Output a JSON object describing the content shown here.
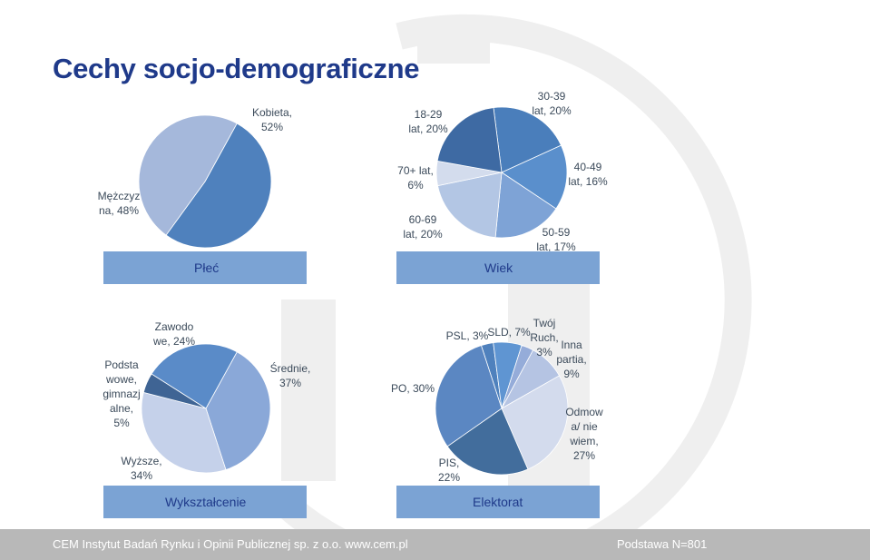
{
  "title": "Cechy socjo-demograficzne",
  "footer": {
    "left": "CEM Instytut Badań Rynku i Opinii Publicznej sp. z o.o. www.cem.pl",
    "right": "Podstawa N=801"
  },
  "chart_data": [
    {
      "type": "pie",
      "caption": "Płeć",
      "slices": [
        {
          "label": [
            "Kobieta,",
            "52%"
          ],
          "value": 52,
          "color": "#4f81bd"
        },
        {
          "label": [
            "Mężczyz",
            "na, 48%"
          ],
          "value": 48,
          "color": "#a5b8db"
        }
      ]
    },
    {
      "type": "pie",
      "caption": "Wiek",
      "slices": [
        {
          "label": [
            "30-39",
            "lat, 20%"
          ],
          "value": 20,
          "color": "#4a7ebb"
        },
        {
          "label": [
            "40-49",
            "lat, 16%"
          ],
          "value": 16,
          "color": "#5a8fcc"
        },
        {
          "label": [
            "50-59",
            "lat, 17%"
          ],
          "value": 17,
          "color": "#7ea3d6"
        },
        {
          "label": [
            "60-69",
            "lat, 20%"
          ],
          "value": 20,
          "color": "#b3c6e4"
        },
        {
          "label": [
            "70+ lat,",
            "6%"
          ],
          "value": 6,
          "color": "#d3dced"
        },
        {
          "label": [
            "18-29",
            "lat, 20%"
          ],
          "value": 20,
          "color": "#3e6aa3"
        }
      ]
    },
    {
      "type": "pie",
      "caption": "Wykształcenie",
      "slices": [
        {
          "label": [
            "Średnie,",
            "37%"
          ],
          "value": 37,
          "color": "#8aa8d8"
        },
        {
          "label": [
            "Wyższe,",
            "34%"
          ],
          "value": 34,
          "color": "#c5d1ea"
        },
        {
          "label": [
            "Podsta",
            "wowe,",
            "gimnazj",
            "alne,",
            "5%"
          ],
          "value": 5,
          "color": "#3f6494"
        },
        {
          "label": [
            "Zawodo",
            "we, 24%"
          ],
          "value": 24,
          "color": "#5a8bc8"
        }
      ]
    },
    {
      "type": "pie",
      "caption": "Elektorat",
      "slices": [
        {
          "label": [
            "PSL, 3%"
          ],
          "value": 3,
          "color": "#4f81bd"
        },
        {
          "label": [
            "SLD, 7%"
          ],
          "value": 7,
          "color": "#5f95d2"
        },
        {
          "label": [
            "Twój",
            "Ruch,",
            "3%"
          ],
          "value": 3,
          "color": "#95acd9"
        },
        {
          "label": [
            "Inna",
            "partia,",
            "9%"
          ],
          "value": 9,
          "color": "#b5c4e3"
        },
        {
          "label": [
            "Odmow",
            "a/ nie",
            "wiem,",
            "27%"
          ],
          "value": 27,
          "color": "#d3dbed"
        },
        {
          "label": [
            "PIS,",
            "22%"
          ],
          "value": 22,
          "color": "#426d9c"
        },
        {
          "label": [
            "PO, 30%"
          ],
          "value": 30,
          "color": "#5b87c2"
        }
      ]
    }
  ]
}
